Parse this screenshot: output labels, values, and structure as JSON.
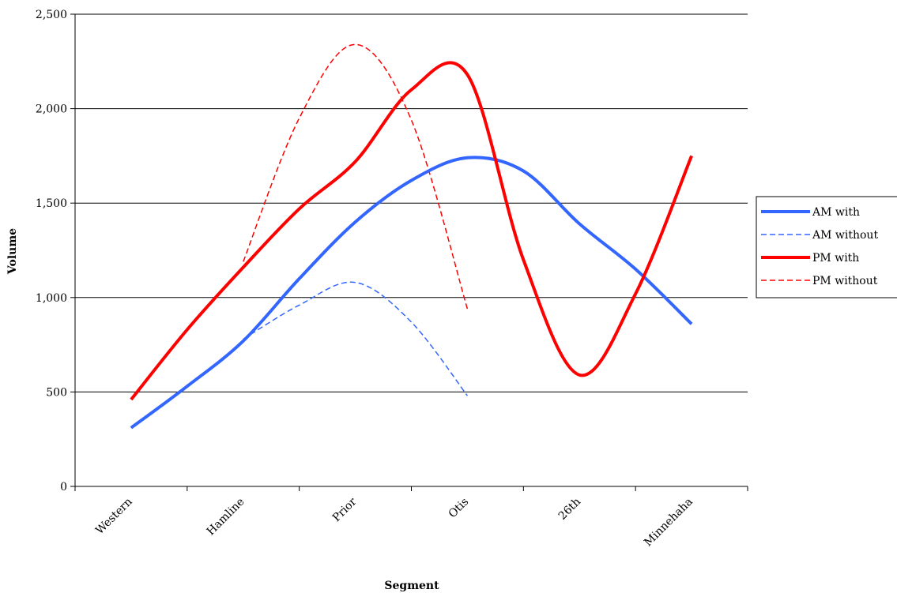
{
  "chart_data": {
    "type": "line",
    "categories": [
      "Western",
      "Hamline",
      "Prior",
      "Otis",
      "26th",
      "Minnehaha"
    ],
    "xlabel": "Segment",
    "ylabel": "Volume",
    "ylim": [
      0,
      2500
    ],
    "yticks": [
      0,
      500,
      1000,
      1500,
      2000,
      2500
    ],
    "ytick_labels": [
      "0",
      "500",
      "1,000",
      "1,500",
      "2,000",
      "2,500"
    ],
    "grid": "horizontal",
    "legend_position": "right",
    "series": [
      {
        "name": "AM with",
        "color": "#3366ff",
        "style": "solid",
        "x": [
          0,
          0.5,
          1,
          1.5,
          2,
          2.5,
          3,
          3.5,
          4,
          4.5,
          5
        ],
        "values": [
          310,
          530,
          770,
          1100,
          1400,
          1620,
          1740,
          1670,
          1390,
          1150,
          860
        ]
      },
      {
        "name": "AM without",
        "color": "#3366ff",
        "style": "dashed",
        "x": [
          1,
          1.5,
          2,
          2.5,
          3
        ],
        "values": [
          780,
          960,
          1080,
          870,
          480
        ]
      },
      {
        "name": "PM with",
        "color": "#ff0000",
        "style": "solid",
        "x": [
          0,
          0.5,
          1,
          1.5,
          2,
          2.5,
          3,
          3.5,
          4,
          4.5,
          5
        ],
        "values": [
          460,
          830,
          1160,
          1470,
          1720,
          2100,
          2180,
          1200,
          590,
          1020,
          1750
        ]
      },
      {
        "name": "PM without",
        "color": "#ff0000",
        "style": "dashed",
        "x": [
          1,
          1.5,
          2,
          2.5,
          3
        ],
        "values": [
          1190,
          1950,
          2340,
          1940,
          940
        ]
      }
    ]
  }
}
